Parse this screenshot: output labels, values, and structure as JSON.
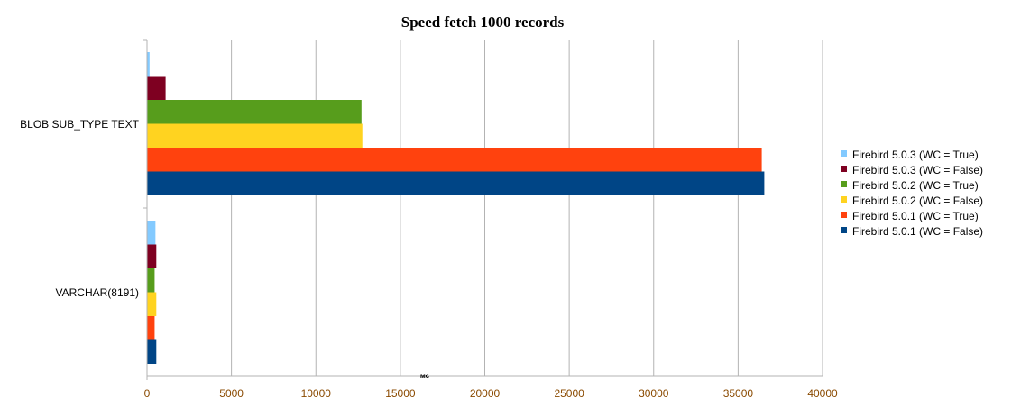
{
  "chart_data": {
    "type": "bar",
    "orientation": "horizontal",
    "title": "Speed fetch 1000 records",
    "xlabel": "мс",
    "ylabel": "",
    "xlim": [
      0,
      40000
    ],
    "xticks": [
      0,
      5000,
      10000,
      15000,
      20000,
      25000,
      30000,
      35000,
      40000
    ],
    "grid": "vertical",
    "legend_position": "right",
    "categories": [
      "BLOB SUB_TYPE TEXT",
      "VARCHAR(8191)"
    ],
    "series": [
      {
        "name": "Firebird 5.0.3 (WC = True)",
        "color": "#83CAFF",
        "values": [
          150,
          500
        ]
      },
      {
        "name": "Firebird 5.0.3 (WC = False)",
        "color": "#7E0021",
        "values": [
          1100,
          550
        ]
      },
      {
        "name": "Firebird 5.0.2 (WC = True)",
        "color": "#579D1C",
        "values": [
          12700,
          450
        ]
      },
      {
        "name": "Firebird 5.0.2 (WC = False)",
        "color": "#FFD320",
        "values": [
          12750,
          550
        ]
      },
      {
        "name": "Firebird 5.0.1 (WC = True)",
        "color": "#FF420E",
        "values": [
          36400,
          450
        ]
      },
      {
        "name": "Firebird 5.0.1 (WC = False)",
        "color": "#004586",
        "values": [
          36550,
          550
        ]
      }
    ]
  }
}
